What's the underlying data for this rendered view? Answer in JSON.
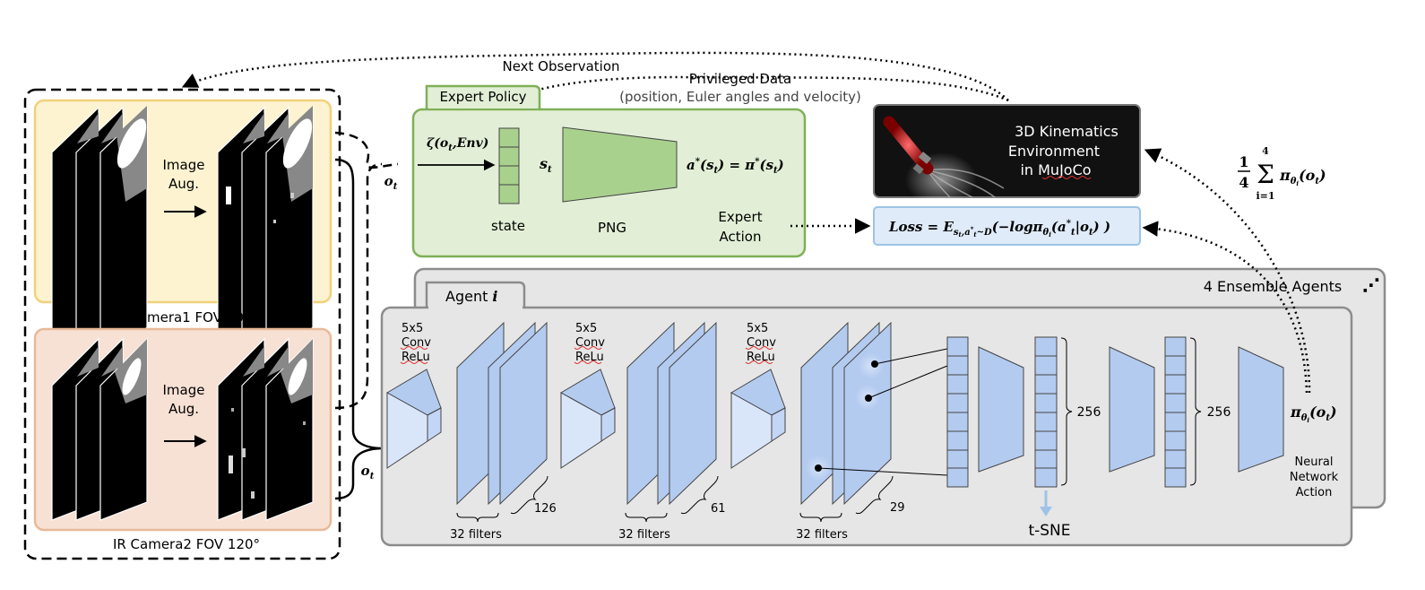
{
  "colors": {
    "yellow_panel": "#fdf3d1",
    "yellow_border": "#f0d27c",
    "peach_panel": "#f7e1d4",
    "peach_border": "#e8b999",
    "expert_fill": "#e2efd6",
    "expert_border": "#7fb058",
    "png_green": "#a9d18e",
    "agent_gray": "#e6e6e6",
    "agent_border": "#8c8c8c",
    "layer_blue": "#b4cbf0",
    "layer_stroke": "#4a4a4a",
    "loss_fill": "#dfebf8",
    "loss_border": "#9dc3e6",
    "env_bg": "#111111"
  },
  "observation_flow": {
    "next_observation": "Next Observation",
    "privileged_data": "Privileged Data",
    "privileged_detail": "(position, Euler angles and velocity)",
    "ot_label": "o_t"
  },
  "cameras": [
    {
      "aug_line1": "Image",
      "aug_line2": "Aug.",
      "caption": "IR Camera1 FOV 90°"
    },
    {
      "aug_line1": "Image",
      "aug_line2": "Aug.",
      "caption": "IR Camera2 FOV 120°"
    }
  ],
  "expert": {
    "tab": "Expert Policy",
    "input_fn": "ζ(o",
    "input_env": "Env",
    "state_symbol": "s",
    "state_label": "state",
    "png_label": "PNG",
    "action_formula": "a*(s_t) = π*(s_t)",
    "action_line1": "Expert",
    "action_line2": "Action"
  },
  "environment": {
    "line1": "3D Kinematics",
    "line2": "Environment",
    "line3": "in MuJoCo"
  },
  "loss": {
    "formula": "Loss = E_{s_t, a*_t ~ D}(−log π_θi(a*_t | o_t))"
  },
  "ensemble": {
    "formula": "1/4 Σ_{i=1}^{4} π_θi(o_t)",
    "frac_num": "1",
    "frac_den": "4",
    "sum_top": "4",
    "sum_bottom": "i=1",
    "label": "4 Ensemble Agents"
  },
  "agent": {
    "tab": "Agent",
    "tab_index": "i",
    "conv_blocks": [
      {
        "k1": "5x5",
        "k2": "Conv",
        "k3": "ReLu",
        "filters": "32 filters",
        "size": "126"
      },
      {
        "k1": "5x5",
        "k2": "Conv",
        "k3": "ReLu",
        "filters": "32 filters",
        "size": "61"
      },
      {
        "k1": "5x5",
        "k2": "Conv",
        "k3": "ReLu",
        "filters": "32 filters",
        "size": "29"
      }
    ],
    "fc1": "256",
    "fc2": "256",
    "tsne": "t-SNE",
    "output_formula": "π_θi(o_t)",
    "output_line1": "Neural",
    "output_line2": "Network",
    "output_line3": "Action"
  }
}
